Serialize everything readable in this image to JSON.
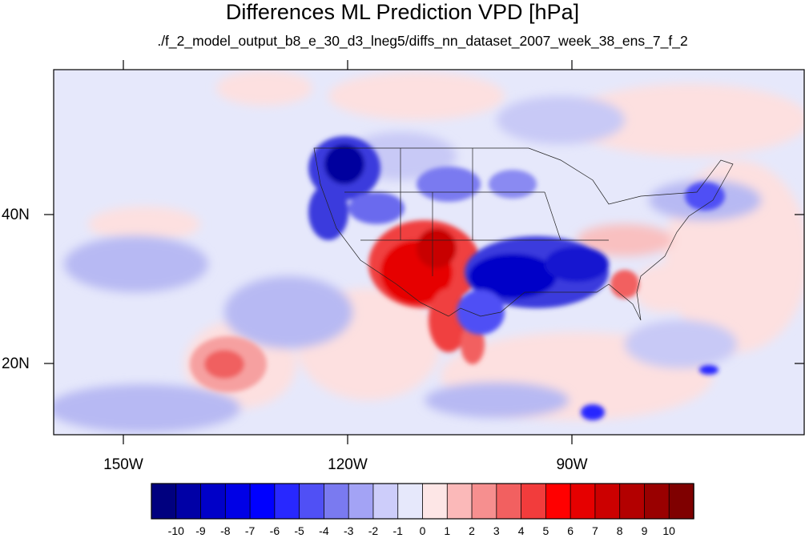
{
  "title": "Differences ML Prediction VPD [hPa]",
  "subtitle": "./f_2_model_output_b8_e_30_d3_lneg5/diffs_nn_dataset_2007_week_38_ens_7_f_2",
  "map": {
    "lat_labels": [
      "40N",
      "20N"
    ],
    "lon_labels": [
      "150W",
      "120W",
      "90W"
    ],
    "colors": {
      "border": "#000000",
      "background": "#e6e8fb"
    }
  },
  "colorbar": {
    "levels": [
      "-10",
      "-9",
      "-8",
      "-7",
      "-6",
      "-5",
      "-4",
      "-3",
      "-2",
      "-1",
      "0",
      "1",
      "2",
      "3",
      "4",
      "5",
      "6",
      "7",
      "8",
      "9",
      "10"
    ],
    "colors": [
      "#00007f",
      "#0000a6",
      "#0000c8",
      "#0000e6",
      "#0000ff",
      "#2828ff",
      "#5050f5",
      "#7a7af0",
      "#a3a3f5",
      "#cdcdfa",
      "#e6e8fb",
      "#fde6e6",
      "#fbb9b9",
      "#f68f8f",
      "#f26060",
      "#f23c3c",
      "#ff0000",
      "#e60000",
      "#cc0000",
      "#b30000",
      "#990000",
      "#7f0000"
    ]
  }
}
